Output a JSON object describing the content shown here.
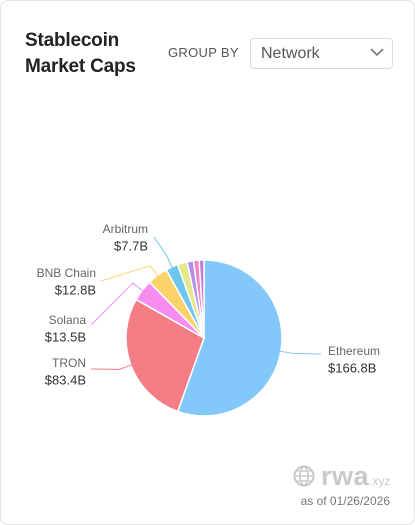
{
  "header": {
    "title": "Stablecoin Market Caps"
  },
  "group_by": {
    "label": "GROUP BY",
    "selected": "Network"
  },
  "footer": {
    "brand": "rwa",
    "brand_suffix": ".xyz",
    "as_of": "as of 01/26/2026"
  },
  "chart_data": {
    "type": "pie",
    "categories": [
      "Ethereum",
      "TRON",
      "Solana",
      "BNB Chain",
      "Arbitrum",
      null,
      null,
      null,
      null
    ],
    "values": [
      166.8,
      83.4,
      13.5,
      12.8,
      7.7,
      6,
      4,
      3.5,
      3
    ],
    "value_labels": [
      "$166.8B",
      "$83.4B",
      "$13.5B",
      "$12.8B",
      "$7.7B",
      null,
      null,
      null,
      null
    ],
    "colors": [
      "#82c8fb",
      "#f47c85",
      "#f78df0",
      "#fbd36b",
      "#6cc6ee",
      "#e4e88a",
      "#b48ef0",
      "#ee84c2",
      "#c47ad8"
    ]
  }
}
